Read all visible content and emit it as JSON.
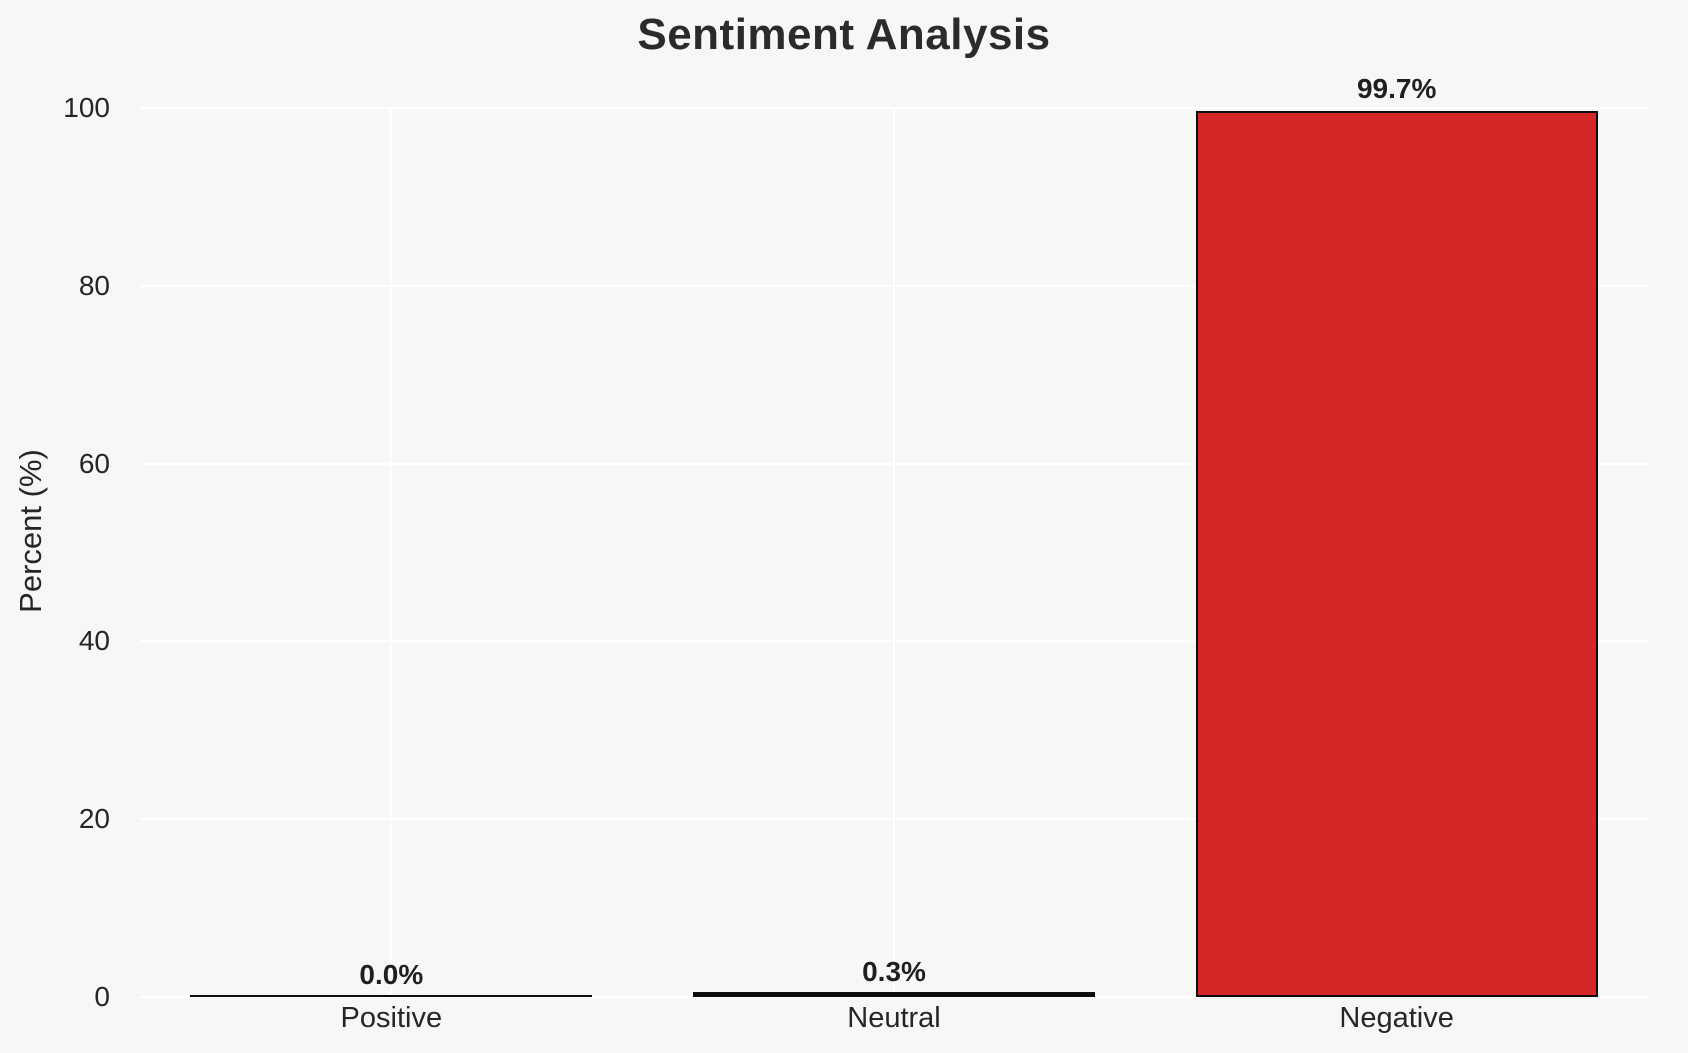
{
  "chart_data": {
    "type": "bar",
    "title": "Sentiment Analysis",
    "xlabel": "",
    "ylabel": "Percent (%)",
    "categories": [
      "Positive",
      "Neutral",
      "Negative"
    ],
    "values": [
      0.0,
      0.3,
      99.7
    ],
    "value_labels": [
      "0.0%",
      "0.3%",
      "99.7%"
    ],
    "yticks": [
      0,
      20,
      40,
      60,
      80,
      100
    ],
    "ylim": [
      0,
      100
    ],
    "grid": true,
    "legend_position": "none",
    "bar_width_fraction": 0.8,
    "colors": {
      "negative_bar_fill": "#d62728",
      "bar_edge": "#0d0d0d",
      "gridline": "#ffffff",
      "background": "#f7f7f6",
      "text": "#262626"
    }
  }
}
